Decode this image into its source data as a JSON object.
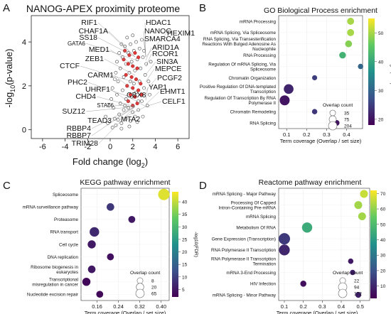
{
  "panel_letters": [
    "A",
    "B",
    "C",
    "D"
  ],
  "chart_data": [
    {
      "panel": "A",
      "type": "scatter",
      "title": "NANOG-APEX proximity proteome",
      "xlabel_main": "Fold change (log",
      "xlabel_sub": "2",
      "xlabel_end": ")",
      "ylabel_pre": "-log",
      "ylabel_sub": "10",
      "ylabel_post": "(p-value)",
      "xticks": [
        -6,
        -4,
        -2,
        0,
        2,
        4,
        6
      ],
      "yticks": [
        0,
        2,
        4
      ],
      "xlim": [
        -7,
        7
      ],
      "ylim": [
        -0.4,
        5.2
      ],
      "background_points": [
        [
          0.2,
          0.1
        ],
        [
          0.5,
          0.2
        ],
        [
          1.0,
          0.3
        ],
        [
          1.4,
          0.5
        ],
        [
          1.8,
          0.4
        ],
        [
          2.2,
          0.6
        ],
        [
          0.8,
          0.7
        ],
        [
          1.2,
          0.9
        ],
        [
          1.6,
          1.0
        ],
        [
          2.0,
          1.1
        ],
        [
          2.5,
          0.9
        ],
        [
          0.4,
          0.5
        ],
        [
          0.9,
          1.2
        ],
        [
          1.4,
          1.4
        ],
        [
          1.9,
          1.5
        ],
        [
          2.3,
          1.7
        ],
        [
          2.8,
          1.3
        ],
        [
          0.6,
          1.6
        ],
        [
          1.1,
          1.8
        ],
        [
          1.5,
          2.0
        ],
        [
          2.1,
          2.1
        ],
        [
          2.6,
          2.2
        ],
        [
          3.0,
          1.9
        ],
        [
          0.7,
          2.2
        ],
        [
          1.2,
          2.4
        ],
        [
          1.7,
          2.6
        ],
        [
          2.2,
          2.7
        ],
        [
          2.7,
          2.8
        ],
        [
          3.1,
          2.5
        ],
        [
          0.9,
          2.8
        ],
        [
          1.4,
          3.0
        ],
        [
          1.9,
          3.1
        ],
        [
          2.4,
          3.2
        ],
        [
          2.9,
          3.3
        ],
        [
          3.2,
          3.0
        ],
        [
          1.1,
          3.3
        ],
        [
          1.6,
          3.5
        ],
        [
          2.1,
          3.6
        ],
        [
          2.6,
          3.7
        ],
        [
          1.3,
          3.8
        ],
        [
          1.8,
          3.9
        ],
        [
          2.3,
          4.0
        ],
        [
          2.8,
          4.1
        ],
        [
          1.5,
          4.2
        ],
        [
          2.0,
          4.3
        ],
        [
          0.3,
          1.0
        ],
        [
          -0.2,
          0.3
        ],
        [
          -0.4,
          0.6
        ],
        [
          0.1,
          1.4
        ],
        [
          0.5,
          2.6
        ],
        [
          0.8,
          3.5
        ],
        [
          3.4,
          2.2
        ],
        [
          3.6,
          3.1
        ],
        [
          1.0,
          0.05
        ],
        [
          1.7,
          0.15
        ],
        [
          2.4,
          0.35
        ],
        [
          2.9,
          0.6
        ],
        [
          3.3,
          1.1
        ],
        [
          0.2,
          1.9
        ],
        [
          0.6,
          3.1
        ],
        [
          1.0,
          3.9
        ],
        [
          3.0,
          3.6
        ],
        [
          3.5,
          1.6
        ],
        [
          -0.1,
          1.1
        ],
        [
          0.4,
          2.3
        ],
        [
          2.5,
          1.3
        ],
        [
          1.3,
          1.1
        ],
        [
          1.8,
          2.2
        ],
        [
          2.0,
          0.8
        ],
        [
          0.7,
          0.45
        ]
      ],
      "highlight_points": [
        [
          1.3,
          3.6
        ],
        [
          1.7,
          3.4
        ],
        [
          2.2,
          3.5
        ],
        [
          2.5,
          3.3
        ],
        [
          1.6,
          3.0
        ],
        [
          2.0,
          2.9
        ],
        [
          2.4,
          2.8
        ],
        [
          1.4,
          2.5
        ],
        [
          1.9,
          2.4
        ],
        [
          2.3,
          2.3
        ],
        [
          2.7,
          2.1
        ],
        [
          1.5,
          2.0
        ],
        [
          2.0,
          1.9
        ],
        [
          2.5,
          1.8
        ],
        [
          1.8,
          1.6
        ],
        [
          2.2,
          1.5
        ],
        [
          2.8,
          1.6
        ],
        [
          1.6,
          1.3
        ],
        [
          2.4,
          1.2
        ],
        [
          2.0,
          1.1
        ],
        [
          1.2,
          3.2
        ]
      ],
      "labels_left": [
        "RIF1",
        "CHAF1A",
        "SS18",
        "GATA6",
        "MED1",
        "ZEB1",
        "CTCF",
        "CARM1",
        "PHC2",
        "UHRF1",
        "CHD4",
        "STAT6",
        "SUZ12",
        "TEAD3",
        "RBBP4",
        "RBBP7",
        "TRIM28"
      ],
      "labels_right": [
        "HDAC1",
        "NANOG",
        "HEXIM1",
        "SMARCA4",
        "ARID1A",
        "RCOR1",
        "SIN3A",
        "MEPCE",
        "PCGF2",
        "YAP1",
        "EHMT1",
        "CBX8",
        "CELF1",
        "MTA2"
      ]
    },
    {
      "panel": "B",
      "type": "scatter",
      "title": "GO Biological Process enrichment",
      "xlabel": "Term coverage (Overlap / set size)",
      "xticks": [
        0.1,
        0.2,
        0.3,
        0.4
      ],
      "xlim": [
        0.06,
        0.48
      ],
      "categories": [
        "mRNA Processing",
        "mRNA Splicing, Via Spliceosome",
        "RNA Splicing, Via Transesterification Reactions With Bulged Adenosine As Nucleophile",
        "RNA Processing",
        "Regulation Of mRNA Splicing, Via Spliceosome",
        "Chromatin Organization",
        "Positive Regulation Of DNA-templated Transcription",
        "Regulation Of Transcription By RNA Polymerase II",
        "Chromatin Remodeling",
        "RNA Splicing"
      ],
      "x": [
        0.42,
        0.42,
        0.41,
        0.38,
        0.47,
        0.24,
        0.11,
        0.09,
        0.24,
        0.35
      ],
      "colorvalue": [
        50,
        50,
        48,
        42,
        30,
        25,
        22,
        20,
        24,
        20
      ],
      "size": [
        70,
        70,
        65,
        60,
        25,
        20,
        190,
        204,
        25,
        35
      ],
      "colorbar_label": "-log10(FDR)",
      "colorbar_ticks": [
        20,
        30,
        40,
        50
      ],
      "colorbar_range": [
        18,
        55
      ],
      "size_legend_title": "Overlap count",
      "size_legend": [
        35,
        75,
        204
      ]
    },
    {
      "panel": "C",
      "type": "scatter",
      "title": "KEGG pathway enrichment",
      "xlabel": "Term coverage (Overlap / set size)",
      "xticks": [
        0.16,
        0.24,
        0.32,
        0.4
      ],
      "xtick_labels": [
        "0.16",
        "0.24",
        "0.32",
        "0.40"
      ],
      "xlim": [
        0.1,
        0.43
      ],
      "categories": [
        "Spliceosome",
        "mRNA surveillance pathway",
        "Proteasome",
        "RNA transport",
        "Cell cycle",
        "DNA replication",
        "Ribosome biogenesis in eukaryotes",
        "Transcriptional misregulation in cancer",
        "Nucleotide excision repair"
      ],
      "x": [
        0.41,
        0.21,
        0.29,
        0.15,
        0.14,
        0.21,
        0.14,
        0.12,
        0.17
      ],
      "colorvalue": [
        42,
        9,
        5,
        7,
        5,
        4,
        5,
        3,
        3
      ],
      "size": [
        65,
        20,
        15,
        40,
        25,
        15,
        20,
        25,
        15
      ],
      "colorbar_label": "-log10(FDR)",
      "colorbar_ticks": [
        5,
        10,
        15,
        20,
        25,
        30,
        35,
        40
      ],
      "colorbar_range": [
        2,
        44
      ],
      "size_legend_title": "Overlap count",
      "size_legend": [
        8,
        20,
        65
      ]
    },
    {
      "panel": "D",
      "type": "scatter",
      "title": "Reactome pathway enrichment",
      "xlabel": "Term coverage (Overlap / set size)",
      "xticks": [
        0.1,
        0.2,
        0.3,
        0.4,
        0.5
      ],
      "xlim": [
        0.07,
        0.55
      ],
      "categories": [
        "mRNA Splicing - Major Pathway",
        "Processing Of Capped Intron-Containing Pre-mRNA",
        "mRNA Splicing",
        "Metabolism Of RNA",
        "Gene Expression (Transcription)",
        "RNA Polymerase II Transcription",
        "RNA Polymerase II Transcription Termination",
        "mRNA 3-End Processing",
        "HIV Infection",
        "mRNA Splicing - Minor Pathway"
      ],
      "x": [
        0.52,
        0.49,
        0.51,
        0.22,
        0.1,
        0.1,
        0.45,
        0.46,
        0.2,
        0.49
      ],
      "colorvalue": [
        66,
        62,
        62,
        45,
        14,
        10,
        7,
        9,
        5,
        9
      ],
      "size": [
        60,
        60,
        58,
        130,
        172,
        150,
        15,
        15,
        25,
        22
      ],
      "colorbar_label": "-log10(FDR)",
      "colorbar_ticks": [
        10,
        20,
        30,
        40,
        50,
        60,
        70
      ],
      "colorbar_range": [
        2,
        72
      ],
      "size_legend_title": "Overlap count",
      "size_legend": [
        22,
        94,
        172
      ]
    }
  ]
}
